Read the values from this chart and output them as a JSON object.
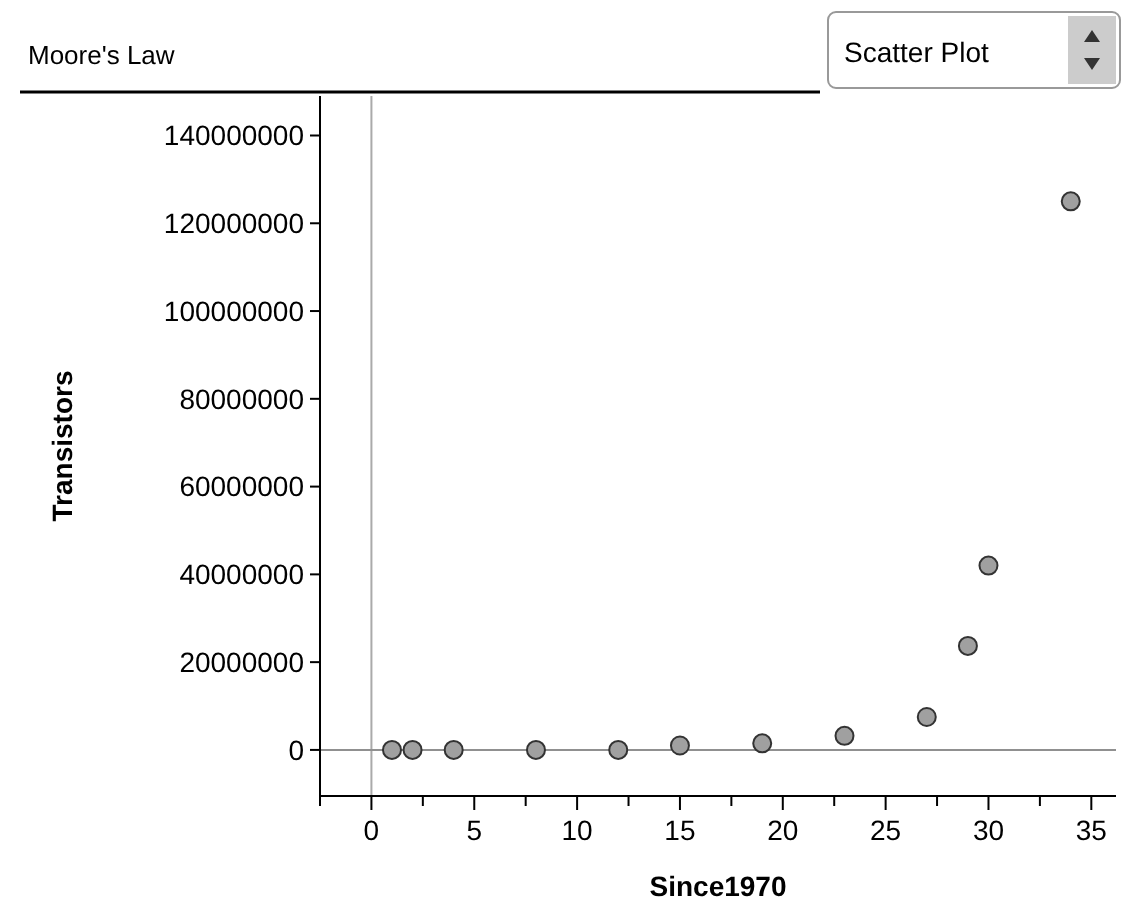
{
  "chart_data": {
    "type": "scatter",
    "title": "Moore's Law",
    "xlabel": "Since1970",
    "ylabel": "Transistors",
    "annotations": [
      "Scatter Plot"
    ],
    "x": [
      1,
      2,
      4,
      8,
      12,
      15,
      19,
      23,
      27,
      29,
      30,
      34
    ],
    "values": [
      0,
      0,
      0,
      0,
      0,
      1000000,
      1500000,
      3200000,
      7500000,
      23700000,
      42000000,
      125000000
    ],
    "color": "#a0a0a0",
    "marker": "circle",
    "grid": false,
    "xlim": [
      -2.5,
      36.2
    ],
    "ylim": [
      -10500000,
      149000000
    ],
    "xticks": [
      {
        "value": -2.5,
        "label": null
      },
      0,
      {
        "value": 2.5,
        "label": null
      },
      5,
      {
        "value": 7.5,
        "label": null
      },
      10,
      {
        "value": 12.5,
        "label": null
      },
      15,
      {
        "value": 17.5,
        "label": null
      },
      20,
      {
        "value": 22.5,
        "label": null
      },
      25,
      {
        "value": 27.5,
        "label": null
      },
      30,
      {
        "value": 32.5,
        "label": null
      },
      35
    ],
    "yticks": [
      0,
      20000000,
      40000000,
      60000000,
      80000000,
      100000000,
      120000000,
      140000000
    ],
    "ref_lines": [
      {
        "axis": "x",
        "value": 0,
        "color": "#aaaaaa"
      },
      {
        "axis": "y",
        "value": 0,
        "color": "#909090"
      }
    ]
  }
}
